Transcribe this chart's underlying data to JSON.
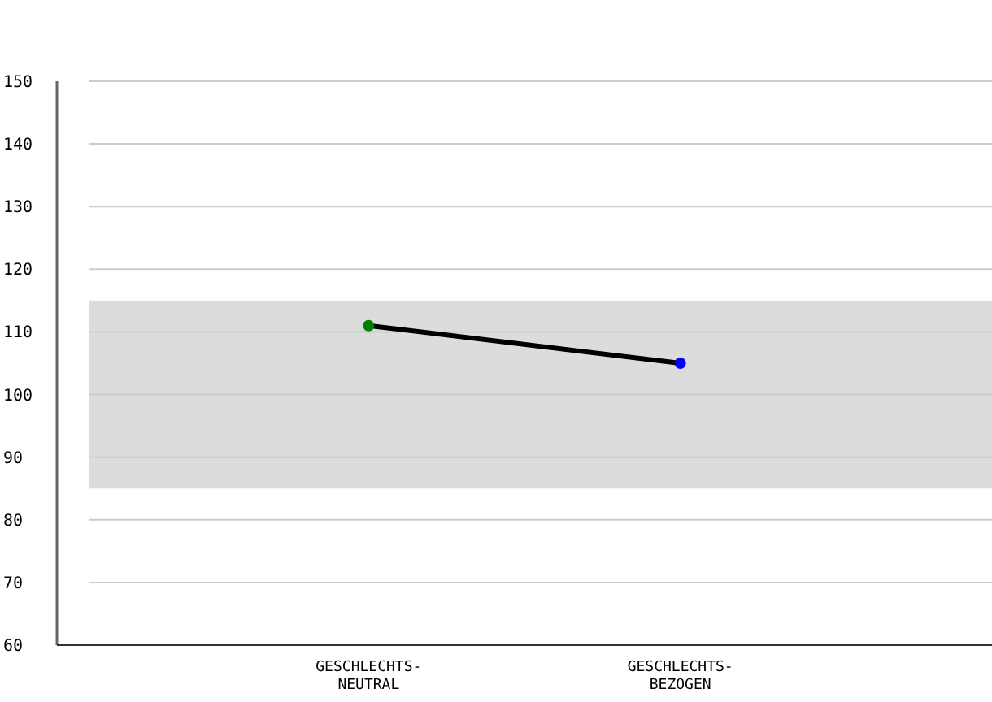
{
  "chart_data": {
    "type": "line",
    "categories": [
      "GESCHLECHTS-\nNEUTRAL",
      "GESCHLECHTS-\nBEZOGEN"
    ],
    "series": [
      {
        "color": "#000000",
        "colors": [
          "#008000",
          "#0000ff"
        ],
        "values": [
          111,
          105
        ]
      }
    ],
    "ylim": [
      60,
      150
    ],
    "yticks": [
      60,
      70,
      80,
      90,
      100,
      110,
      120,
      130,
      140,
      150
    ],
    "grid": "y",
    "marker": "circle",
    "line_style": "solid",
    "bands": [
      {
        "axis": "y",
        "from": 85,
        "to": 115,
        "color": "#dcdcdc"
      }
    ]
  }
}
